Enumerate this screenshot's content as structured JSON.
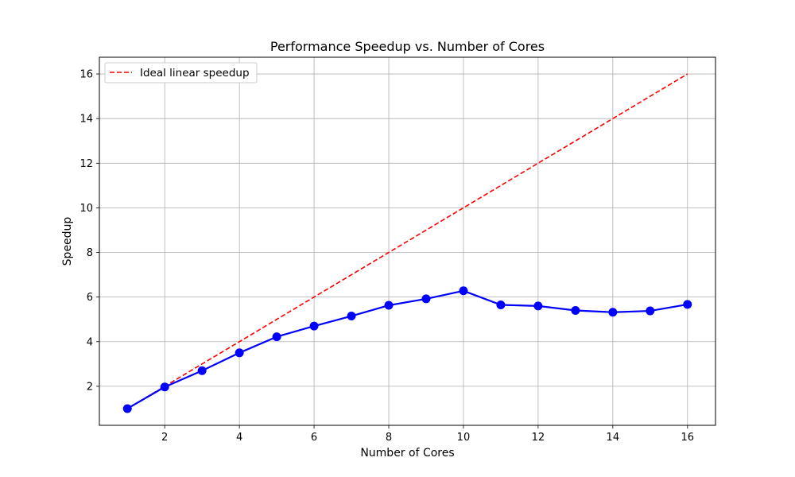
{
  "chart_data": {
    "type": "line",
    "title": "Performance Speedup vs. Number of Cores",
    "xlabel": "Number of Cores",
    "ylabel": "Speedup",
    "xlim": [
      0.25,
      16.75
    ],
    "ylim": [
      0.25,
      16.75
    ],
    "xticks": [
      2,
      4,
      6,
      8,
      10,
      12,
      14,
      16
    ],
    "yticks": [
      2,
      4,
      6,
      8,
      10,
      12,
      14,
      16
    ],
    "grid": true,
    "legend_position": "top-left",
    "series": [
      {
        "name": "Ideal linear speedup",
        "style": "dashed",
        "color": "#ff0000",
        "x": [
          1,
          16
        ],
        "y": [
          1,
          16
        ]
      },
      {
        "name": "",
        "style": "solid-markers",
        "color": "#0000ff",
        "x": [
          1,
          2,
          3,
          4,
          5,
          6,
          7,
          8,
          9,
          10,
          11,
          12,
          13,
          14,
          15,
          16
        ],
        "y": [
          1.0,
          1.97,
          2.7,
          3.5,
          4.22,
          4.7,
          5.15,
          5.63,
          5.92,
          6.28,
          5.65,
          5.6,
          5.4,
          5.32,
          5.38,
          5.67
        ]
      }
    ]
  }
}
